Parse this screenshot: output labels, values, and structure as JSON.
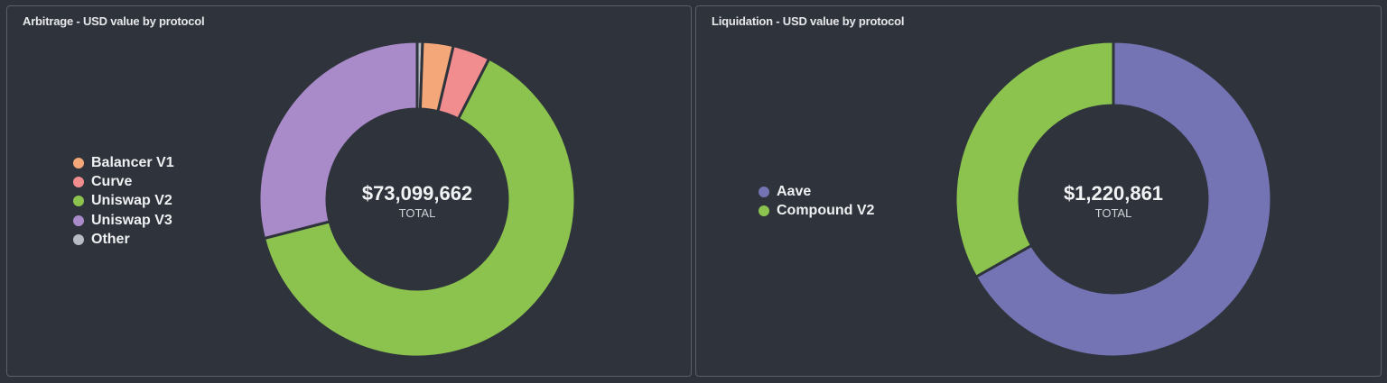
{
  "chart_data": [
    {
      "type": "pie",
      "variant": "donut",
      "title": "Arbitrage - USD value by protocol",
      "categories": [
        "Balancer V1",
        "Curve",
        "Uniswap V2",
        "Uniswap V3",
        "Other"
      ],
      "values": [
        2300000,
        2800000,
        46400000,
        21200000,
        399662
      ],
      "colors": [
        "#f4a87a",
        "#f28d8f",
        "#8bc34e",
        "#a98bc9",
        "#b7bcc4"
      ],
      "slice_order": [
        "Other",
        "Balancer V1",
        "Curve",
        "Uniswap V2",
        "Uniswap V3"
      ],
      "total_value": "$73,099,662",
      "total_label": "TOTAL",
      "legend_position": "left"
    },
    {
      "type": "pie",
      "variant": "donut",
      "title": "Liquidation - USD value by protocol",
      "categories": [
        "Aave",
        "Compound V2"
      ],
      "values": [
        815500,
        405361
      ],
      "colors": [
        "#7473b3",
        "#8bc34e"
      ],
      "slice_order": [
        "Aave",
        "Compound V2"
      ],
      "total_value": "$1,220,861",
      "total_label": "TOTAL",
      "legend_position": "left"
    }
  ]
}
